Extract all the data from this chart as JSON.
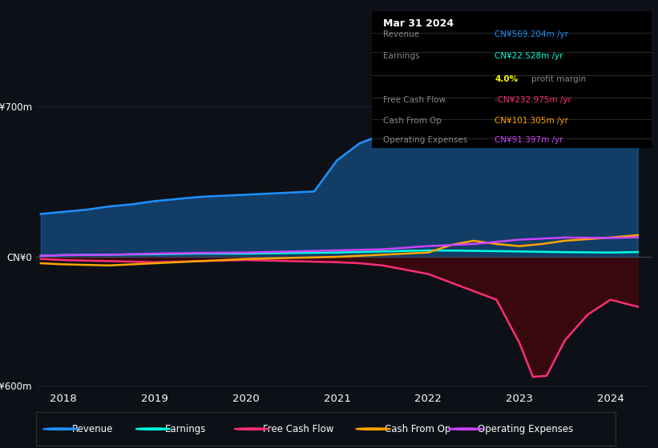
{
  "background_color": "#0d1117",
  "chart_bg_color": "#0d1117",
  "grid_color": "#1e2a38",
  "y_label_top": "CN¥700m",
  "y_label_zero": "CN¥0",
  "y_label_bot": "-CN¥600m",
  "ylim": [
    -620,
    780
  ],
  "xlim": [
    2017.7,
    2024.45
  ],
  "x_ticks": [
    2018,
    2019,
    2020,
    2021,
    2022,
    2023,
    2024
  ],
  "series_colors": {
    "revenue": "#1e90ff",
    "earnings": "#00ffe0",
    "free_cash_flow": "#ff2d78",
    "cash_from_op": "#ffa500",
    "operating_expenses": "#cc44ff"
  },
  "legend_items": [
    {
      "label": "Revenue",
      "color": "#1e90ff"
    },
    {
      "label": "Earnings",
      "color": "#00ffe0"
    },
    {
      "label": "Free Cash Flow",
      "color": "#ff2d78"
    },
    {
      "label": "Cash From Op",
      "color": "#ffa500"
    },
    {
      "label": "Operating Expenses",
      "color": "#cc44ff"
    }
  ],
  "tooltip": {
    "date": "Mar 31 2024",
    "revenue_label": "Revenue",
    "revenue": "CN¥569.204m /yr",
    "revenue_color": "#1e90ff",
    "earnings_label": "Earnings",
    "earnings": "CN¥22.528m /yr",
    "earnings_color": "#00ffe0",
    "profit_pct": "4.0%",
    "profit_text": " profit margin",
    "fcf_label": "Free Cash Flow",
    "free_cash_flow": "-CN¥232.975m /yr",
    "free_cash_flow_color": "#ff2d78",
    "cop_label": "Cash From Op",
    "cash_from_op": "CN¥101.305m /yr",
    "cash_from_op_color": "#ffa500",
    "opex_label": "Operating Expenses",
    "operating_expenses": "CN¥91.397m /yr",
    "operating_expenses_color": "#cc44ff"
  },
  "revenue_x": [
    2017.75,
    2018.0,
    2018.25,
    2018.5,
    2018.75,
    2019.0,
    2019.25,
    2019.5,
    2019.75,
    2020.0,
    2020.25,
    2020.5,
    2020.75,
    2021.0,
    2021.25,
    2021.5,
    2021.75,
    2022.0,
    2022.25,
    2022.5,
    2022.75,
    2023.0,
    2023.25,
    2023.5,
    2023.75,
    2024.0,
    2024.3
  ],
  "revenue_y": [
    200,
    210,
    220,
    235,
    245,
    260,
    270,
    280,
    285,
    290,
    295,
    300,
    305,
    450,
    530,
    570,
    580,
    610,
    590,
    580,
    570,
    560,
    555,
    540,
    530,
    545,
    569
  ],
  "earnings_x": [
    2017.75,
    2018.0,
    2018.5,
    2019.0,
    2019.5,
    2020.0,
    2020.5,
    2021.0,
    2021.5,
    2022.0,
    2022.5,
    2023.0,
    2023.5,
    2024.0,
    2024.3
  ],
  "earnings_y": [
    5,
    8,
    10,
    12,
    15,
    15,
    18,
    20,
    25,
    30,
    28,
    25,
    22,
    20,
    22.5
  ],
  "fcf_x": [
    2017.75,
    2018.0,
    2018.5,
    2019.0,
    2019.5,
    2020.0,
    2020.5,
    2021.0,
    2021.25,
    2021.5,
    2021.75,
    2022.0,
    2022.25,
    2022.5,
    2022.75,
    2023.0,
    2023.15,
    2023.3,
    2023.5,
    2023.75,
    2024.0,
    2024.3
  ],
  "fcf_y": [
    -10,
    -15,
    -20,
    -25,
    -20,
    -15,
    -20,
    -25,
    -30,
    -40,
    -60,
    -80,
    -120,
    -160,
    -200,
    -400,
    -560,
    -555,
    -390,
    -270,
    -200,
    -233
  ],
  "cop_x": [
    2017.75,
    2018.0,
    2018.5,
    2019.0,
    2019.5,
    2020.0,
    2020.5,
    2021.0,
    2021.5,
    2022.0,
    2022.25,
    2022.5,
    2022.75,
    2023.0,
    2023.25,
    2023.5,
    2024.0,
    2024.3
  ],
  "cop_y": [
    -30,
    -35,
    -40,
    -30,
    -20,
    -10,
    -5,
    0,
    10,
    20,
    55,
    75,
    60,
    50,
    60,
    75,
    90,
    101
  ],
  "opex_x": [
    2017.75,
    2018.0,
    2018.5,
    2019.0,
    2019.5,
    2020.0,
    2020.5,
    2021.0,
    2021.5,
    2022.0,
    2022.5,
    2023.0,
    2023.5,
    2024.0,
    2024.3
  ],
  "opex_y": [
    5,
    8,
    10,
    15,
    18,
    20,
    25,
    30,
    35,
    50,
    60,
    80,
    90,
    88,
    91
  ]
}
